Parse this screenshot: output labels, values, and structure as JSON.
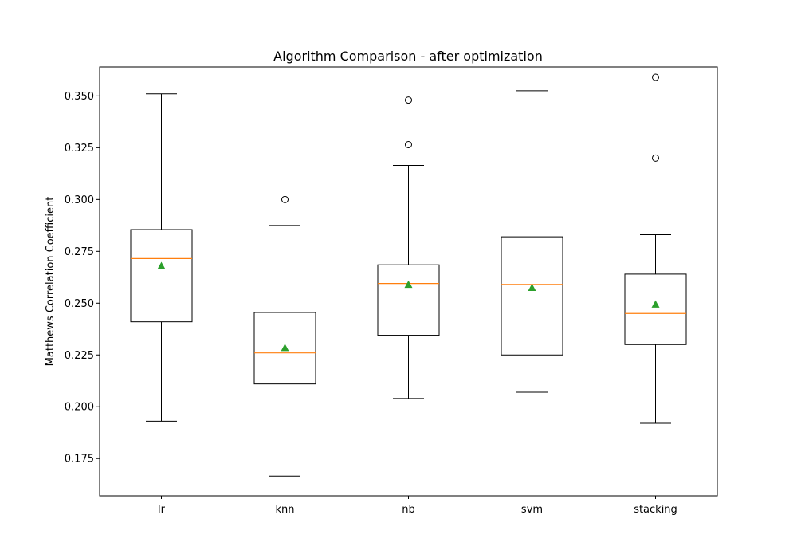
{
  "chart_data": {
    "type": "box",
    "title": "Algorithm Comparison - after optimization",
    "xlabel": "",
    "ylabel": "Matthews Correlation Coefficient",
    "ylim": [
      0.157,
      0.364
    ],
    "yticks": [
      0.175,
      0.2,
      0.225,
      0.25,
      0.275,
      0.3,
      0.325,
      0.35
    ],
    "ytick_labels": [
      "0.175",
      "0.200",
      "0.225",
      "0.250",
      "0.275",
      "0.300",
      "0.325",
      "0.350"
    ],
    "categories": [
      "lr",
      "knn",
      "nb",
      "svm",
      "stacking"
    ],
    "grid": false,
    "boxes": [
      {
        "name": "lr",
        "whisker_low": 0.193,
        "q1": 0.241,
        "median": 0.2715,
        "q3": 0.2855,
        "whisker_high": 0.351,
        "mean": 0.268,
        "outliers": []
      },
      {
        "name": "knn",
        "whisker_low": 0.1665,
        "q1": 0.211,
        "median": 0.226,
        "q3": 0.2455,
        "whisker_high": 0.2875,
        "mean": 0.2285,
        "outliers": [
          0.3
        ]
      },
      {
        "name": "nb",
        "whisker_low": 0.204,
        "q1": 0.2345,
        "median": 0.2595,
        "q3": 0.2685,
        "whisker_high": 0.3165,
        "mean": 0.259,
        "outliers": [
          0.3265,
          0.348
        ]
      },
      {
        "name": "svm",
        "whisker_low": 0.207,
        "q1": 0.225,
        "median": 0.259,
        "q3": 0.282,
        "whisker_high": 0.3525,
        "mean": 0.2575,
        "outliers": []
      },
      {
        "name": "stacking",
        "whisker_low": 0.192,
        "q1": 0.23,
        "median": 0.245,
        "q3": 0.264,
        "whisker_high": 0.283,
        "mean": 0.2495,
        "outliers": [
          0.32,
          0.359
        ]
      }
    ],
    "colors": {
      "box": "#000000",
      "median": "#ff7f0e",
      "mean": "#2ca02c",
      "outlier": "#000000"
    }
  }
}
